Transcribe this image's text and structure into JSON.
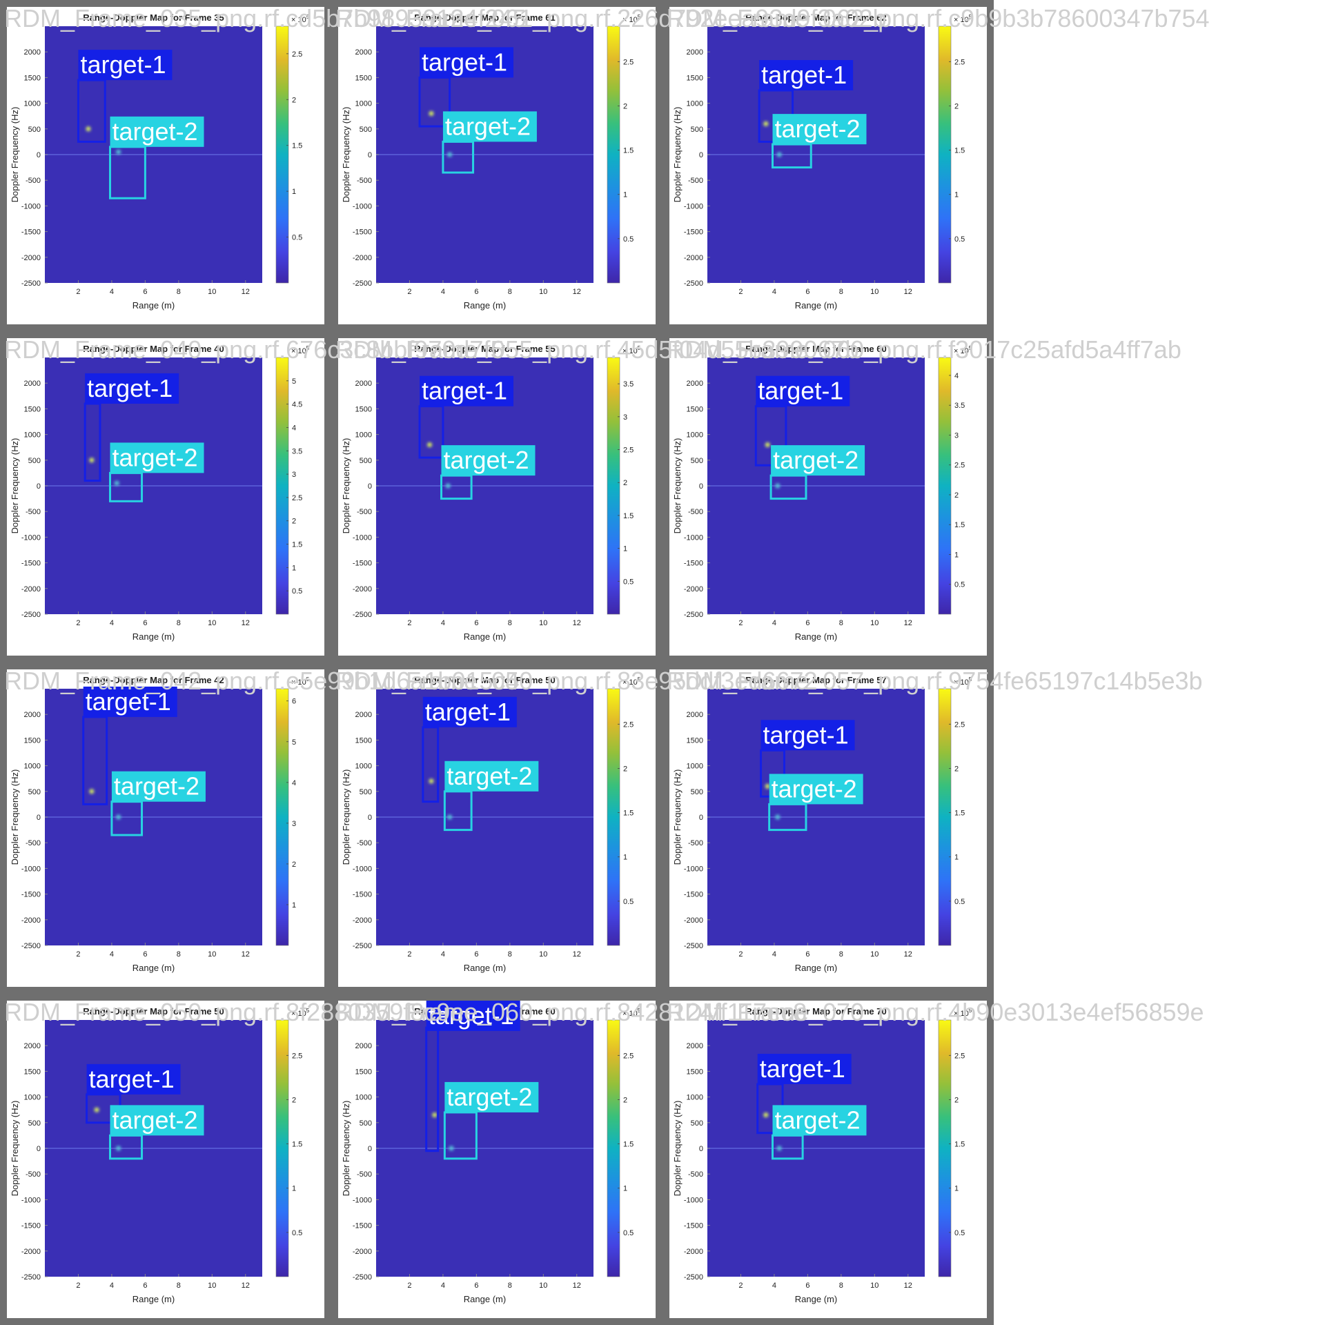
{
  "grid": {
    "tiles": [
      {
        "filename": "RDM_Frame_035_png.rf.cd5b7b98939124f245",
        "title": "Range-Doppler Map for Frame 35",
        "cbar_max": 2.8,
        "cbar_ticks": [
          0.5,
          1,
          1.5,
          2,
          2.5
        ],
        "cbar_exponent": "5",
        "boxes": [
          {
            "label": "target-1",
            "range": [
              2.0,
              3.6
            ],
            "doppler": [
              250,
              1450
            ],
            "hot": {
              "r": 2.6,
              "d": 500
            }
          },
          {
            "label": "target-2",
            "range": [
              3.9,
              6.0
            ],
            "doppler": [
              -850,
              150
            ],
            "hot": {
              "r": 4.4,
              "d": 50
            }
          }
        ]
      },
      {
        "filename": "RDM_Frame_061_png.rf.226d792eea93d9f3a02b",
        "title": "Range-Doppler Map for Frame 61",
        "cbar_max": 2.9,
        "cbar_ticks": [
          0.5,
          1,
          1.5,
          2,
          2.5
        ],
        "cbar_exponent": "5",
        "boxes": [
          {
            "label": "target-1",
            "range": [
              2.6,
              4.4
            ],
            "doppler": [
              550,
              1500
            ],
            "hot": {
              "r": 3.3,
              "d": 800
            }
          },
          {
            "label": "target-2",
            "range": [
              4.0,
              5.8
            ],
            "doppler": [
              -350,
              250
            ],
            "hot": {
              "r": 4.4,
              "d": 0
            }
          }
        ]
      },
      {
        "filename": "RDM_Frame_062_png.rf.c9b9b3b78600347b754",
        "title": "Range-Doppler Map for Frame 62",
        "cbar_max": 2.9,
        "cbar_ticks": [
          0.5,
          1,
          1.5,
          2,
          2.5
        ],
        "cbar_exponent": "5",
        "boxes": [
          {
            "label": "target-1",
            "range": [
              3.1,
              5.1
            ],
            "doppler": [
              250,
              1250
            ],
            "hot": {
              "r": 3.5,
              "d": 600
            }
          },
          {
            "label": "target-2",
            "range": [
              3.9,
              6.2
            ],
            "doppler": [
              -250,
              200
            ],
            "hot": {
              "r": 4.3,
              "d": 0
            }
          }
        ]
      },
      {
        "filename": "RDM_Frame_040_png.rf.676c3c8bbf970d7f5",
        "title": "Range-Doppler Map for Frame 40",
        "cbar_max": 5.5,
        "cbar_ticks": [
          0.5,
          1,
          1.5,
          2,
          2.5,
          3,
          3.5,
          4,
          4.5,
          5
        ],
        "cbar_exponent": "5",
        "boxes": [
          {
            "label": "target-1",
            "range": [
              2.4,
              3.3
            ],
            "doppler": [
              100,
              1600
            ],
            "hot": {
              "r": 2.8,
              "d": 500
            }
          },
          {
            "label": "target-2",
            "range": [
              3.9,
              5.8
            ],
            "doppler": [
              -300,
              250
            ],
            "hot": {
              "r": 4.3,
              "d": 50
            }
          }
        ]
      },
      {
        "filename": "RDM_Frame_055_png.rf.45d5f04d55b399067b",
        "title": "Range-Doppler Map for Frame 55",
        "cbar_max": 3.9,
        "cbar_ticks": [
          0.5,
          1,
          1.5,
          2,
          2.5,
          3,
          3.5
        ],
        "cbar_exponent": "5",
        "boxes": [
          {
            "label": "target-1",
            "range": [
              2.6,
              4.0
            ],
            "doppler": [
              550,
              1550
            ],
            "hot": {
              "r": 3.2,
              "d": 800
            }
          },
          {
            "label": "target-2",
            "range": [
              3.9,
              5.7
            ],
            "doppler": [
              -250,
              200
            ],
            "hot": {
              "r": 4.3,
              "d": 0
            }
          }
        ]
      },
      {
        "filename": "RDM_Frame_060_png.rf.f3017c25afd5a4ff7ab",
        "title": "Range-Doppler Map for Frame 60",
        "cbar_max": 4.3,
        "cbar_ticks": [
          0.5,
          1,
          1.5,
          2,
          2.5,
          3,
          3.5,
          4
        ],
        "cbar_exponent": "5",
        "boxes": [
          {
            "label": "target-1",
            "range": [
              2.9,
              4.7
            ],
            "doppler": [
              400,
              1550
            ],
            "hot": {
              "r": 3.6,
              "d": 800
            }
          },
          {
            "label": "target-2",
            "range": [
              3.8,
              5.9
            ],
            "doppler": [
              -250,
              200
            ],
            "hot": {
              "r": 4.2,
              "d": 0
            }
          }
        ]
      },
      {
        "filename": "RDM_Frame_042_png.rf.e5e99b1d6a1b015c4",
        "title": "Range-Doppler Map for Frame 42",
        "cbar_max": 6.3,
        "cbar_ticks": [
          1,
          2,
          3,
          4,
          5,
          6
        ],
        "cbar_exponent": "5",
        "boxes": [
          {
            "label": "target-1",
            "range": [
              2.3,
              3.7
            ],
            "doppler": [
              250,
              1950
            ],
            "hot": {
              "r": 2.8,
              "d": 500
            }
          },
          {
            "label": "target-2",
            "range": [
              4.0,
              5.8
            ],
            "doppler": [
              -350,
              300
            ],
            "hot": {
              "r": 4.4,
              "d": 0
            }
          }
        ]
      },
      {
        "filename": "RDM_Frame_050_png.rf.83e95ddf3ed6672",
        "title": "Range-Doppler Map for Frame 50",
        "cbar_max": 2.9,
        "cbar_ticks": [
          0.5,
          1,
          1.5,
          2,
          2.5
        ],
        "cbar_exponent": "5",
        "boxes": [
          {
            "label": "target-1",
            "range": [
              2.8,
              3.7
            ],
            "doppler": [
              300,
              1750
            ],
            "hot": {
              "r": 3.3,
              "d": 700
            }
          },
          {
            "label": "target-2",
            "range": [
              4.1,
              5.7
            ],
            "doppler": [
              -250,
              500
            ],
            "hot": {
              "r": 4.4,
              "d": 0
            }
          }
        ]
      },
      {
        "filename": "RDM_Frame_057_png.rf.9754fe65197c14b5e3b",
        "title": "Range-Doppler Map for Frame 57",
        "cbar_max": 2.9,
        "cbar_ticks": [
          0.5,
          1,
          1.5,
          2,
          2.5
        ],
        "cbar_exponent": "5",
        "boxes": [
          {
            "label": "target-1",
            "range": [
              3.2,
              4.6
            ],
            "doppler": [
              400,
              1300
            ],
            "hot": {
              "r": 3.6,
              "d": 600
            }
          },
          {
            "label": "target-2",
            "range": [
              3.7,
              5.9
            ],
            "doppler": [
              -250,
              250
            ],
            "hot": {
              "r": 4.2,
              "d": 0
            }
          }
        ]
      },
      {
        "filename": "RDM_Frame_050_png.rf.8f2880359f8c9ee",
        "title": "Range-Doppler Map for Frame 50",
        "cbar_max": 2.9,
        "cbar_ticks": [
          0.5,
          1,
          1.5,
          2,
          2.5
        ],
        "cbar_exponent": "5",
        "boxes": [
          {
            "label": "target-1",
            "range": [
              2.5,
              4.5
            ],
            "doppler": [
              500,
              1050
            ],
            "hot": {
              "r": 3.1,
              "d": 750
            }
          },
          {
            "label": "target-2",
            "range": [
              3.9,
              5.8
            ],
            "doppler": [
              -200,
              250
            ],
            "hot": {
              "r": 4.4,
              "d": 0
            }
          }
        ]
      },
      {
        "filename": "RDM_Frame_060_png.rf.8428124ff117ec8",
        "title": "Range-Doppler Map for Frame 60",
        "cbar_max": 2.9,
        "cbar_ticks": [
          0.5,
          1,
          1.5,
          2,
          2.5
        ],
        "cbar_exponent": "5",
        "boxes": [
          {
            "label": "target-1",
            "range": [
              3.0,
              3.7
            ],
            "doppler": [
              -50,
              2350
            ],
            "hot": {
              "r": 3.5,
              "d": 650
            }
          },
          {
            "label": "target-2",
            "range": [
              4.1,
              6.0
            ],
            "doppler": [
              -200,
              700
            ],
            "hot": {
              "r": 4.5,
              "d": 0
            }
          }
        ]
      },
      {
        "filename": "RDM_Frame_070_png.rf.4b90e3013e4ef56859e",
        "title": "Range-Doppler Map for Frame 70",
        "cbar_max": 2.9,
        "cbar_ticks": [
          0.5,
          1,
          1.5,
          2,
          2.5
        ],
        "cbar_exponent": "5",
        "boxes": [
          {
            "label": "target-1",
            "range": [
              3.0,
              4.5
            ],
            "doppler": [
              300,
              1250
            ],
            "hot": {
              "r": 3.5,
              "d": 650
            }
          },
          {
            "label": "target-2",
            "range": [
              3.9,
              5.7
            ],
            "doppler": [
              -200,
              250
            ],
            "hot": {
              "r": 4.3,
              "d": 0
            }
          }
        ]
      }
    ]
  },
  "axis": {
    "xlabel": "Range (m)",
    "ylabel": "Doppler Frequency (Hz)",
    "xlim": [
      0,
      13
    ],
    "ylim": [
      -2500,
      2500
    ],
    "xticks": [
      2,
      4,
      6,
      8,
      10,
      12
    ],
    "yticks": [
      2000,
      1500,
      1000,
      500,
      0,
      -500,
      -1000,
      -1500,
      -2000,
      -2500
    ],
    "cbar_prefix": "× 10"
  },
  "colors": {
    "background": "#3a2fb5",
    "target1": "#1420e6",
    "target2": "#28d3e2",
    "frame": "#6f6f6f"
  },
  "chart_data": {
    "type": "heatmap",
    "xlabel": "Range (m)",
    "ylabel": "Doppler Frequency (Hz)",
    "xlim": [
      0,
      13
    ],
    "ylim": [
      -2500,
      2500
    ],
    "colorbar": "parula",
    "panels": [
      {
        "title": "Range-Doppler Map for Frame 35",
        "cbar_max": 2.8,
        "boxes": [
          {
            "label": "target-1",
            "range": [
              2.0,
              3.6
            ],
            "doppler": [
              250,
              1450
            ]
          },
          {
            "label": "target-2",
            "range": [
              3.9,
              6.0
            ],
            "doppler": [
              -850,
              150
            ]
          }
        ]
      },
      {
        "title": "Range-Doppler Map for Frame 61",
        "cbar_max": 2.9,
        "boxes": [
          {
            "label": "target-1",
            "range": [
              2.6,
              4.4
            ],
            "doppler": [
              550,
              1500
            ]
          },
          {
            "label": "target-2",
            "range": [
              4.0,
              5.8
            ],
            "doppler": [
              -350,
              250
            ]
          }
        ]
      },
      {
        "title": "Range-Doppler Map for Frame 62",
        "cbar_max": 2.9,
        "boxes": [
          {
            "label": "target-1",
            "range": [
              3.1,
              5.1
            ],
            "doppler": [
              250,
              1250
            ]
          },
          {
            "label": "target-2",
            "range": [
              3.9,
              6.2
            ],
            "doppler": [
              -250,
              200
            ]
          }
        ]
      },
      {
        "title": "Range-Doppler Map for Frame 40",
        "cbar_max": 5.5,
        "boxes": [
          {
            "label": "target-1",
            "range": [
              2.4,
              3.3
            ],
            "doppler": [
              100,
              1600
            ]
          },
          {
            "label": "target-2",
            "range": [
              3.9,
              5.8
            ],
            "doppler": [
              -300,
              250
            ]
          }
        ]
      },
      {
        "title": "Range-Doppler Map for Frame 55",
        "cbar_max": 3.9,
        "boxes": [
          {
            "label": "target-1",
            "range": [
              2.6,
              4.0
            ],
            "doppler": [
              550,
              1550
            ]
          },
          {
            "label": "target-2",
            "range": [
              3.9,
              5.7
            ],
            "doppler": [
              -250,
              200
            ]
          }
        ]
      },
      {
        "title": "Range-Doppler Map for Frame 60",
        "cbar_max": 4.3,
        "boxes": [
          {
            "label": "target-1",
            "range": [
              2.9,
              4.7
            ],
            "doppler": [
              400,
              1550
            ]
          },
          {
            "label": "target-2",
            "range": [
              3.8,
              5.9
            ],
            "doppler": [
              -250,
              200
            ]
          }
        ]
      },
      {
        "title": "Range-Doppler Map for Frame 42",
        "cbar_max": 6.3,
        "boxes": [
          {
            "label": "target-1",
            "range": [
              2.3,
              3.7
            ],
            "doppler": [
              250,
              1950
            ]
          },
          {
            "label": "target-2",
            "range": [
              4.0,
              5.8
            ],
            "doppler": [
              -350,
              300
            ]
          }
        ]
      },
      {
        "title": "Range-Doppler Map for Frame 50",
        "cbar_max": 2.9,
        "boxes": [
          {
            "label": "target-1",
            "range": [
              2.8,
              3.7
            ],
            "doppler": [
              300,
              1750
            ]
          },
          {
            "label": "target-2",
            "range": [
              4.1,
              5.7
            ],
            "doppler": [
              -250,
              500
            ]
          }
        ]
      },
      {
        "title": "Range-Doppler Map for Frame 57",
        "cbar_max": 2.9,
        "boxes": [
          {
            "label": "target-1",
            "range": [
              3.2,
              4.6
            ],
            "doppler": [
              400,
              1300
            ]
          },
          {
            "label": "target-2",
            "range": [
              3.7,
              5.9
            ],
            "doppler": [
              -250,
              250
            ]
          }
        ]
      },
      {
        "title": "Range-Doppler Map for Frame 50",
        "cbar_max": 2.9,
        "boxes": [
          {
            "label": "target-1",
            "range": [
              2.5,
              4.5
            ],
            "doppler": [
              500,
              1050
            ]
          },
          {
            "label": "target-2",
            "range": [
              3.9,
              5.8
            ],
            "doppler": [
              -200,
              250
            ]
          }
        ]
      },
      {
        "title": "Range-Doppler Map for Frame 60",
        "cbar_max": 2.9,
        "boxes": [
          {
            "label": "target-1",
            "range": [
              3.0,
              3.7
            ],
            "doppler": [
              -50,
              2350
            ]
          },
          {
            "label": "target-2",
            "range": [
              4.1,
              6.0
            ],
            "doppler": [
              -200,
              700
            ]
          }
        ]
      },
      {
        "title": "Range-Doppler Map for Frame 70",
        "cbar_max": 2.9,
        "boxes": [
          {
            "label": "target-1",
            "range": [
              3.0,
              4.5
            ],
            "doppler": [
              300,
              1250
            ]
          },
          {
            "label": "target-2",
            "range": [
              3.9,
              5.7
            ],
            "doppler": [
              -200,
              250
            ]
          }
        ]
      }
    ]
  }
}
